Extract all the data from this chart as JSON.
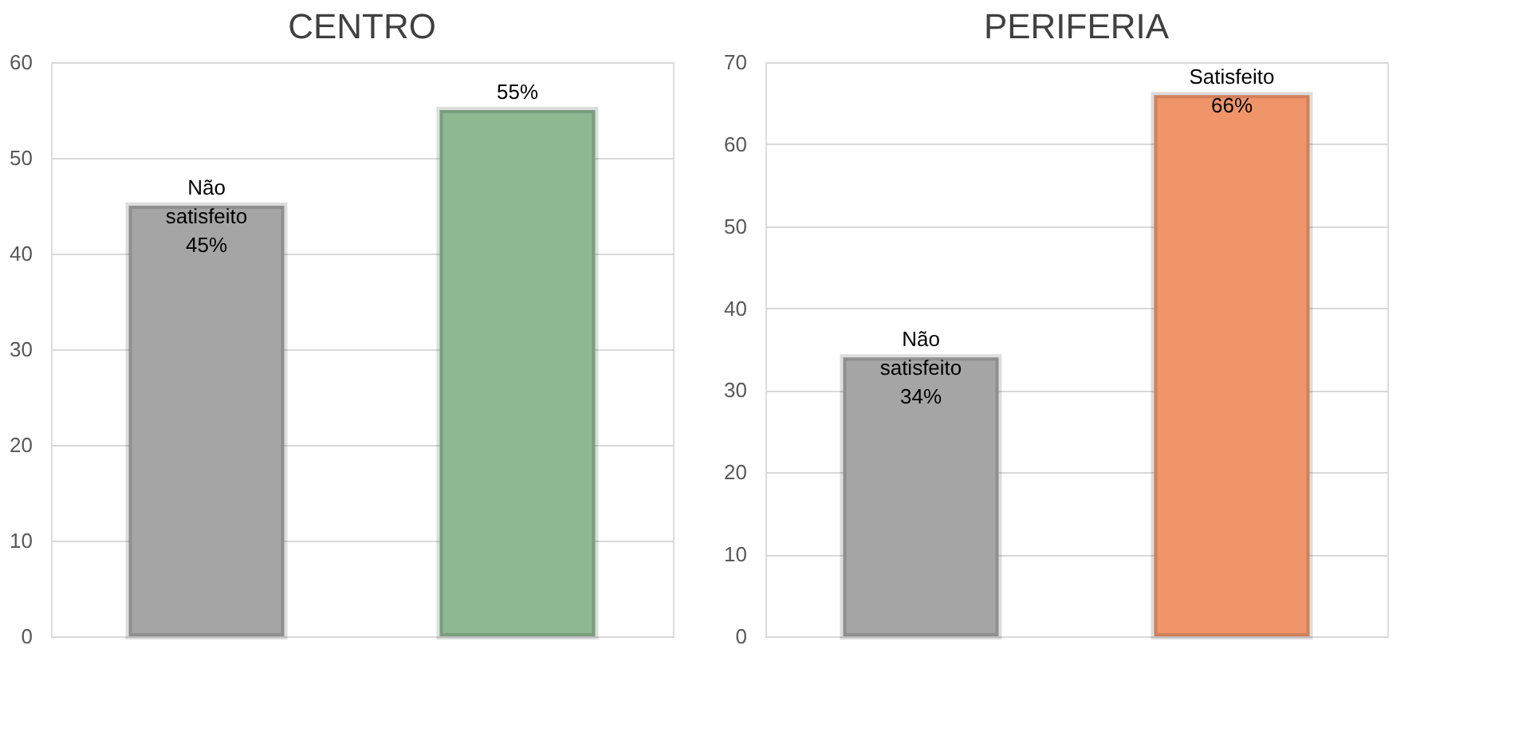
{
  "chart_data": [
    {
      "type": "bar",
      "title": "CENTRO",
      "categories": [
        null,
        null
      ],
      "values": [
        45,
        55
      ],
      "colors": [
        "#a5a5a5",
        "#8db892"
      ],
      "value_labels": [
        "Não satisfeito 45%",
        "55%"
      ],
      "ylim": [
        0,
        60
      ],
      "yticks": [
        0,
        10,
        20,
        30,
        40,
        50,
        60
      ],
      "grid": "y"
    },
    {
      "type": "bar",
      "title": "PERIFERIA",
      "categories": [
        null,
        null
      ],
      "values": [
        34,
        66
      ],
      "colors": [
        "#a5a5a5",
        "#f0956a"
      ],
      "value_labels": [
        "Não satisfeito 34%",
        "Satisfeito 66%"
      ],
      "ylim": [
        0,
        70
      ],
      "yticks": [
        0,
        10,
        20,
        30,
        40,
        50,
        60,
        70
      ],
      "grid": "y"
    }
  ]
}
